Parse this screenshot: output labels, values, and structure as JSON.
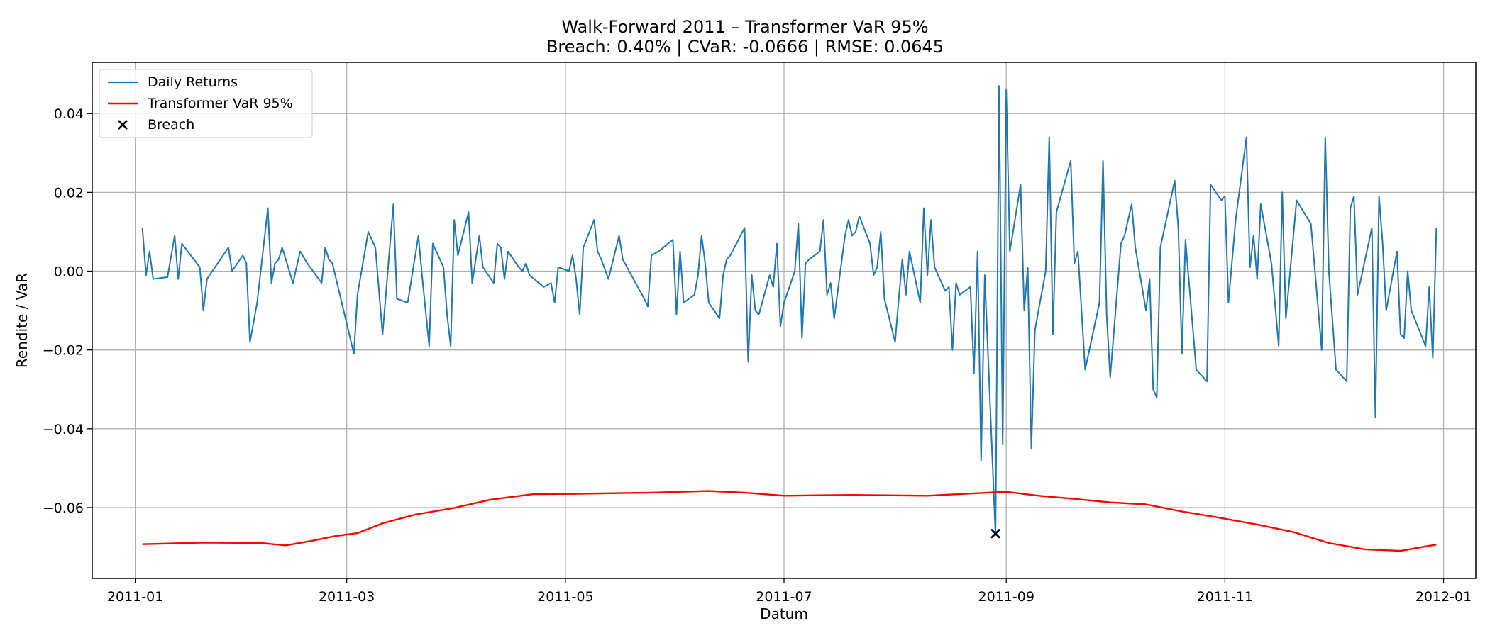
{
  "chart_data": {
    "type": "line",
    "title": "Walk-Forward 2011 – Transformer VaR 95%",
    "subtitle": "Breach: 0.40% | CVaR: -0.0666 | RMSE: 0.0645",
    "xlabel": "Datum",
    "ylabel": "Rendite / VaR",
    "xlim": [
      "2010-12-20",
      "2012-01-10"
    ],
    "ylim": [
      -0.078,
      0.053
    ],
    "x_ticks": [
      {
        "date": "2011-01-01",
        "label": "2011-01"
      },
      {
        "date": "2011-03-01",
        "label": "2011-03"
      },
      {
        "date": "2011-05-01",
        "label": "2011-05"
      },
      {
        "date": "2011-07-01",
        "label": "2011-07"
      },
      {
        "date": "2011-09-01",
        "label": "2011-09"
      },
      {
        "date": "2011-11-01",
        "label": "2011-11"
      },
      {
        "date": "2012-01-01",
        "label": "2012-01"
      }
    ],
    "y_ticks": [
      {
        "value": 0.04,
        "label": "0.04"
      },
      {
        "value": 0.02,
        "label": "0.02"
      },
      {
        "value": 0.0,
        "label": "0.00"
      },
      {
        "value": -0.02,
        "label": "−0.02"
      },
      {
        "value": -0.04,
        "label": "−0.04"
      },
      {
        "value": -0.06,
        "label": "−0.06"
      }
    ],
    "grid": true,
    "legend_position": "top-left",
    "series": [
      {
        "name": "Daily Returns",
        "color": "#1f77b4",
        "kind": "line",
        "points": [
          [
            "2011-01-03",
            0.011
          ],
          [
            "2011-01-04",
            -0.001
          ],
          [
            "2011-01-05",
            0.005
          ],
          [
            "2011-01-06",
            -0.002
          ],
          [
            "2011-01-10",
            -0.0015
          ],
          [
            "2011-01-12",
            0.009
          ],
          [
            "2011-01-13",
            -0.002
          ],
          [
            "2011-01-14",
            0.007
          ],
          [
            "2011-01-19",
            0.001
          ],
          [
            "2011-01-20",
            -0.01
          ],
          [
            "2011-01-21",
            -0.002
          ],
          [
            "2011-01-24",
            0.002
          ],
          [
            "2011-01-27",
            0.006
          ],
          [
            "2011-01-28",
            0.0
          ],
          [
            "2011-01-31",
            0.004
          ],
          [
            "2011-02-01",
            0.002
          ],
          [
            "2011-02-02",
            -0.018
          ],
          [
            "2011-02-04",
            -0.008
          ],
          [
            "2011-02-07",
            0.016
          ],
          [
            "2011-02-08",
            -0.003
          ],
          [
            "2011-02-09",
            0.002
          ],
          [
            "2011-02-10",
            0.003
          ],
          [
            "2011-02-11",
            0.006
          ],
          [
            "2011-02-14",
            -0.003
          ],
          [
            "2011-02-16",
            0.005
          ],
          [
            "2011-02-18",
            0.002
          ],
          [
            "2011-02-22",
            -0.003
          ],
          [
            "2011-02-23",
            0.006
          ],
          [
            "2011-02-24",
            0.003
          ],
          [
            "2011-02-25",
            0.002
          ],
          [
            "2011-03-03",
            -0.021
          ],
          [
            "2011-03-04",
            -0.006
          ],
          [
            "2011-03-07",
            0.01
          ],
          [
            "2011-03-09",
            0.006
          ],
          [
            "2011-03-11",
            -0.016
          ],
          [
            "2011-03-14",
            0.017
          ],
          [
            "2011-03-15",
            -0.007
          ],
          [
            "2011-03-18",
            -0.008
          ],
          [
            "2011-03-21",
            0.009
          ],
          [
            "2011-03-22",
            -0.001
          ],
          [
            "2011-03-24",
            -0.019
          ],
          [
            "2011-03-25",
            0.007
          ],
          [
            "2011-03-28",
            0.001
          ],
          [
            "2011-03-29",
            -0.011
          ],
          [
            "2011-03-30",
            -0.019
          ],
          [
            "2011-03-31",
            0.013
          ],
          [
            "2011-04-01",
            0.004
          ],
          [
            "2011-04-04",
            0.015
          ],
          [
            "2011-04-05",
            -0.003
          ],
          [
            "2011-04-07",
            0.009
          ],
          [
            "2011-04-08",
            0.001
          ],
          [
            "2011-04-11",
            -0.003
          ],
          [
            "2011-04-12",
            0.007
          ],
          [
            "2011-04-13",
            0.006
          ],
          [
            "2011-04-14",
            -0.002
          ],
          [
            "2011-04-15",
            0.005
          ],
          [
            "2011-04-18",
            0.001
          ],
          [
            "2011-04-19",
            0.0
          ],
          [
            "2011-04-20",
            0.002
          ],
          [
            "2011-04-21",
            -0.001
          ],
          [
            "2011-04-25",
            -0.004
          ],
          [
            "2011-04-27",
            -0.003
          ],
          [
            "2011-04-28",
            -0.008
          ],
          [
            "2011-04-29",
            0.001
          ],
          [
            "2011-05-02",
            0.0
          ],
          [
            "2011-05-03",
            0.004
          ],
          [
            "2011-05-04",
            -0.002
          ],
          [
            "2011-05-05",
            -0.011
          ],
          [
            "2011-05-06",
            0.006
          ],
          [
            "2011-05-09",
            0.013
          ],
          [
            "2011-05-10",
            0.005
          ],
          [
            "2011-05-11",
            0.003
          ],
          [
            "2011-05-13",
            -0.002
          ],
          [
            "2011-05-16",
            0.009
          ],
          [
            "2011-05-17",
            0.003
          ],
          [
            "2011-05-20",
            -0.002
          ],
          [
            "2011-05-23",
            -0.007
          ],
          [
            "2011-05-24",
            -0.009
          ],
          [
            "2011-05-25",
            0.004
          ],
          [
            "2011-05-27",
            0.005
          ],
          [
            "2011-05-31",
            0.008
          ],
          [
            "2011-06-01",
            -0.011
          ],
          [
            "2011-06-02",
            0.005
          ],
          [
            "2011-06-03",
            -0.008
          ],
          [
            "2011-06-06",
            -0.006
          ],
          [
            "2011-06-07",
            -0.001
          ],
          [
            "2011-06-08",
            0.009
          ],
          [
            "2011-06-09",
            0.002
          ],
          [
            "2011-06-10",
            -0.008
          ],
          [
            "2011-06-13",
            -0.012
          ],
          [
            "2011-06-14",
            -0.001
          ],
          [
            "2011-06-15",
            0.003
          ],
          [
            "2011-06-16",
            0.004
          ],
          [
            "2011-06-20",
            0.011
          ],
          [
            "2011-06-21",
            -0.023
          ],
          [
            "2011-06-22",
            -0.001
          ],
          [
            "2011-06-23",
            -0.01
          ],
          [
            "2011-06-24",
            -0.011
          ],
          [
            "2011-06-27",
            -0.001
          ],
          [
            "2011-06-28",
            -0.004
          ],
          [
            "2011-06-29",
            0.007
          ],
          [
            "2011-06-30",
            -0.014
          ],
          [
            "2011-07-01",
            -0.008
          ],
          [
            "2011-07-04",
            0.0
          ],
          [
            "2011-07-05",
            0.012
          ],
          [
            "2011-07-06",
            -0.017
          ],
          [
            "2011-07-07",
            0.002
          ],
          [
            "2011-07-08",
            0.003
          ],
          [
            "2011-07-11",
            0.005
          ],
          [
            "2011-07-12",
            0.013
          ],
          [
            "2011-07-13",
            -0.006
          ],
          [
            "2011-07-14",
            -0.003
          ],
          [
            "2011-07-15",
            -0.012
          ],
          [
            "2011-07-18",
            0.009
          ],
          [
            "2011-07-19",
            0.013
          ],
          [
            "2011-07-20",
            0.009
          ],
          [
            "2011-07-21",
            0.01
          ],
          [
            "2011-07-22",
            0.014
          ],
          [
            "2011-07-25",
            0.007
          ],
          [
            "2011-07-26",
            -0.001
          ],
          [
            "2011-07-27",
            0.001
          ],
          [
            "2011-07-28",
            0.01
          ],
          [
            "2011-07-29",
            -0.007
          ],
          [
            "2011-08-01",
            -0.018
          ],
          [
            "2011-08-02",
            -0.007
          ],
          [
            "2011-08-03",
            0.003
          ],
          [
            "2011-08-04",
            -0.006
          ],
          [
            "2011-08-05",
            0.005
          ],
          [
            "2011-08-08",
            -0.008
          ],
          [
            "2011-08-09",
            0.016
          ],
          [
            "2011-08-10",
            -0.001
          ],
          [
            "2011-08-11",
            0.013
          ],
          [
            "2011-08-12",
            0.001
          ],
          [
            "2011-08-15",
            -0.005
          ],
          [
            "2011-08-16",
            -0.004
          ],
          [
            "2011-08-17",
            -0.02
          ],
          [
            "2011-08-18",
            -0.003
          ],
          [
            "2011-08-19",
            -0.006
          ],
          [
            "2011-08-22",
            -0.004
          ],
          [
            "2011-08-23",
            -0.026
          ],
          [
            "2011-08-24",
            0.005
          ],
          [
            "2011-08-25",
            -0.048
          ],
          [
            "2011-08-26",
            -0.001
          ],
          [
            "2011-08-29",
            -0.067
          ],
          [
            "2011-08-30",
            0.047
          ],
          [
            "2011-08-31",
            -0.044
          ],
          [
            "2011-09-01",
            0.046
          ],
          [
            "2011-09-02",
            0.005
          ],
          [
            "2011-09-05",
            0.022
          ],
          [
            "2011-09-06",
            -0.01
          ],
          [
            "2011-09-07",
            0.001
          ],
          [
            "2011-09-08",
            -0.045
          ],
          [
            "2011-09-09",
            -0.015
          ],
          [
            "2011-09-12",
            0.0
          ],
          [
            "2011-09-13",
            0.034
          ],
          [
            "2011-09-14",
            -0.016
          ],
          [
            "2011-09-15",
            0.015
          ],
          [
            "2011-09-19",
            0.028
          ],
          [
            "2011-09-20",
            0.002
          ],
          [
            "2011-09-21",
            0.005
          ],
          [
            "2011-09-23",
            -0.025
          ],
          [
            "2011-09-27",
            -0.008
          ],
          [
            "2011-09-28",
            0.028
          ],
          [
            "2011-09-29",
            -0.011
          ],
          [
            "2011-09-30",
            -0.027
          ],
          [
            "2011-10-03",
            0.007
          ],
          [
            "2011-10-04",
            0.009
          ],
          [
            "2011-10-06",
            0.017
          ],
          [
            "2011-10-07",
            0.006
          ],
          [
            "2011-10-10",
            -0.01
          ],
          [
            "2011-10-11",
            -0.002
          ],
          [
            "2011-10-12",
            -0.03
          ],
          [
            "2011-10-13",
            -0.032
          ],
          [
            "2011-10-14",
            0.006
          ],
          [
            "2011-10-18",
            0.023
          ],
          [
            "2011-10-19",
            0.011
          ],
          [
            "2011-10-20",
            -0.021
          ],
          [
            "2011-10-21",
            0.008
          ],
          [
            "2011-10-24",
            -0.025
          ],
          [
            "2011-10-27",
            -0.028
          ],
          [
            "2011-10-28",
            0.022
          ],
          [
            "2011-10-31",
            0.018
          ],
          [
            "2011-11-01",
            0.019
          ],
          [
            "2011-11-02",
            -0.008
          ],
          [
            "2011-11-04",
            0.013
          ],
          [
            "2011-11-07",
            0.034
          ],
          [
            "2011-11-08",
            0.001
          ],
          [
            "2011-11-09",
            0.009
          ],
          [
            "2011-11-10",
            -0.002
          ],
          [
            "2011-11-11",
            0.017
          ],
          [
            "2011-11-14",
            0.002
          ],
          [
            "2011-11-16",
            -0.019
          ],
          [
            "2011-11-17",
            0.02
          ],
          [
            "2011-11-18",
            -0.012
          ],
          [
            "2011-11-21",
            0.018
          ],
          [
            "2011-11-25",
            0.012
          ],
          [
            "2011-11-28",
            -0.02
          ],
          [
            "2011-11-29",
            0.034
          ],
          [
            "2011-11-30",
            0.0
          ],
          [
            "2011-12-02",
            -0.025
          ],
          [
            "2011-12-05",
            -0.028
          ],
          [
            "2011-12-06",
            0.016
          ],
          [
            "2011-12-07",
            0.019
          ],
          [
            "2011-12-08",
            -0.006
          ],
          [
            "2011-12-12",
            0.011
          ],
          [
            "2011-12-13",
            -0.037
          ],
          [
            "2011-12-14",
            0.019
          ],
          [
            "2011-12-15",
            0.007
          ],
          [
            "2011-12-16",
            -0.01
          ],
          [
            "2011-12-19",
            0.005
          ],
          [
            "2011-12-20",
            -0.016
          ],
          [
            "2011-12-21",
            -0.017
          ],
          [
            "2011-12-22",
            0.0
          ],
          [
            "2011-12-23",
            -0.01
          ],
          [
            "2011-12-27",
            -0.019
          ],
          [
            "2011-12-28",
            -0.004
          ],
          [
            "2011-12-29",
            -0.022
          ],
          [
            "2011-12-30",
            0.011
          ]
        ]
      },
      {
        "name": "Transformer VaR 95%",
        "color": "#ff0000",
        "kind": "line",
        "points": [
          [
            "2011-01-03",
            -0.0693
          ],
          [
            "2011-01-20",
            -0.0689
          ],
          [
            "2011-02-05",
            -0.069
          ],
          [
            "2011-02-12",
            -0.0696
          ],
          [
            "2011-02-19",
            -0.0685
          ],
          [
            "2011-02-26",
            -0.0672
          ],
          [
            "2011-03-04",
            -0.0665
          ],
          [
            "2011-03-11",
            -0.064
          ],
          [
            "2011-03-20",
            -0.0618
          ],
          [
            "2011-03-31",
            -0.0601
          ],
          [
            "2011-04-10",
            -0.058
          ],
          [
            "2011-04-22",
            -0.0566
          ],
          [
            "2011-05-05",
            -0.0565
          ],
          [
            "2011-05-25",
            -0.0562
          ],
          [
            "2011-06-10",
            -0.0558
          ],
          [
            "2011-06-20",
            -0.0562
          ],
          [
            "2011-07-01",
            -0.057
          ],
          [
            "2011-07-20",
            -0.0568
          ],
          [
            "2011-08-10",
            -0.057
          ],
          [
            "2011-08-25",
            -0.0563
          ],
          [
            "2011-09-01",
            -0.056
          ],
          [
            "2011-09-10",
            -0.057
          ],
          [
            "2011-09-20",
            -0.0578
          ],
          [
            "2011-09-30",
            -0.0587
          ],
          [
            "2011-10-10",
            -0.0592
          ],
          [
            "2011-10-20",
            -0.061
          ],
          [
            "2011-10-30",
            -0.0625
          ],
          [
            "2011-11-10",
            -0.0643
          ],
          [
            "2011-11-20",
            -0.0662
          ],
          [
            "2011-11-30",
            -0.069
          ],
          [
            "2011-12-10",
            -0.0706
          ],
          [
            "2011-12-20",
            -0.071
          ],
          [
            "2011-12-30",
            -0.0694
          ]
        ]
      },
      {
        "name": "Breach",
        "color": "#000000",
        "kind": "marker",
        "points": [
          [
            "2011-08-29",
            -0.0666
          ]
        ]
      }
    ]
  }
}
